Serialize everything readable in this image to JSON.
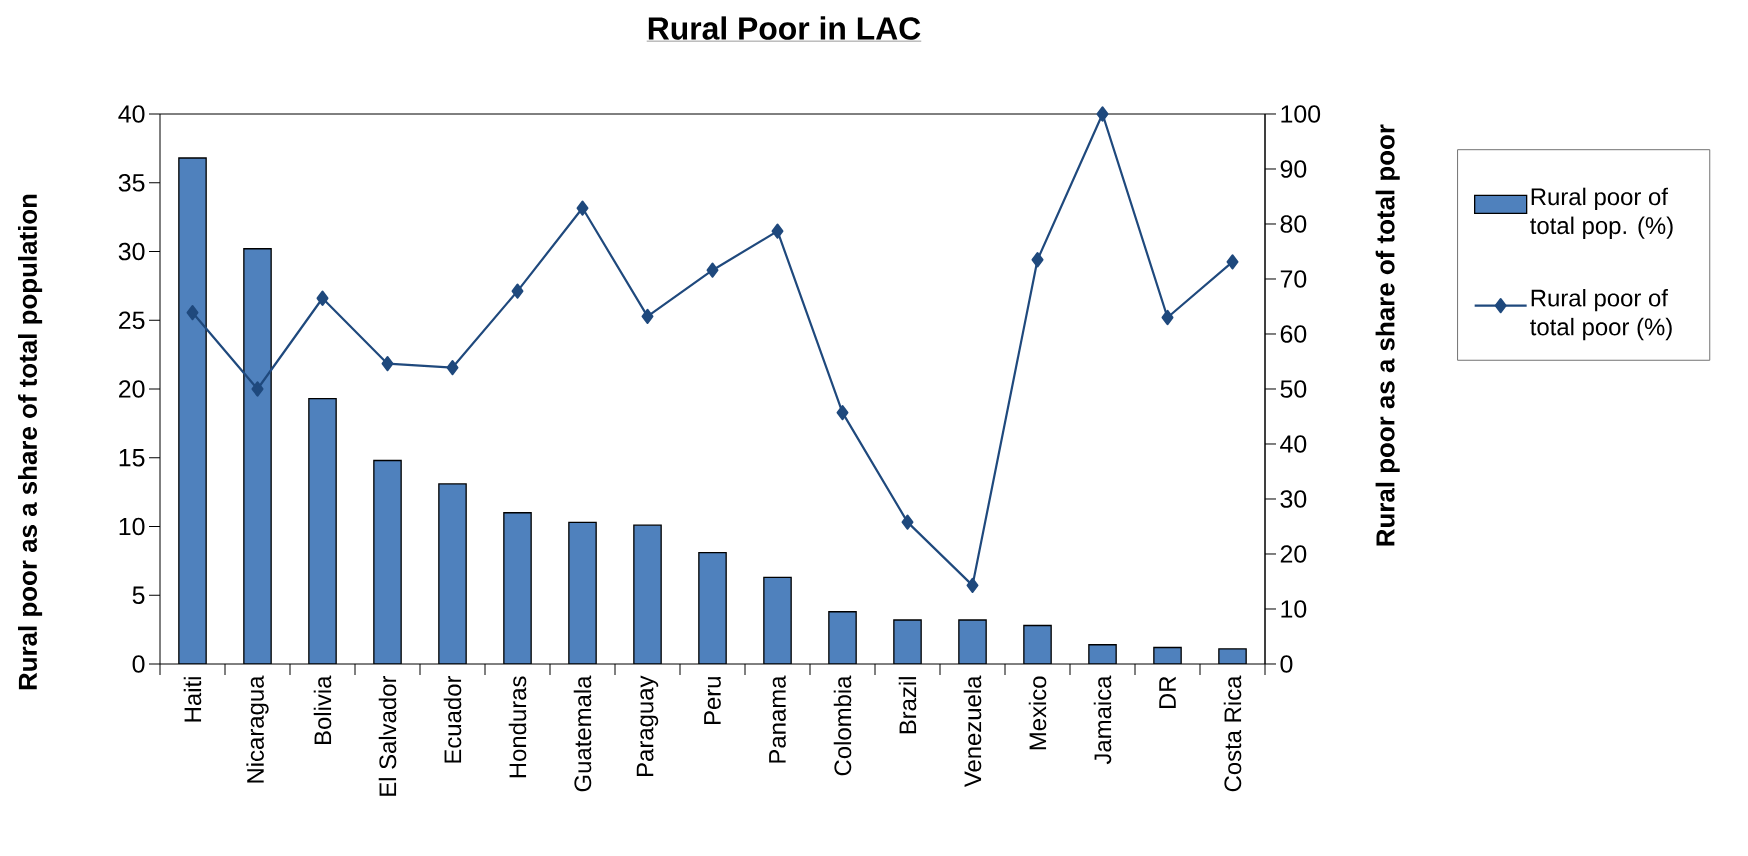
{
  "chart_data": {
    "type": "bar",
    "title": "Rural Poor in LAC",
    "ylabel": "Rural poor as a share of total population",
    "y2label": "Rural poor as a share of total poor",
    "categories": [
      "Haiti",
      "Nicaragua",
      "Bolivia",
      "El Salvador",
      "Ecuador",
      "Honduras",
      "Guatemala",
      "Paraguay",
      "Peru",
      "Panama",
      "Colombia",
      "Brazil",
      "Venezuela",
      "Mexico",
      "Jamaica",
      "DR",
      "Costa Rica"
    ],
    "series": [
      {
        "name": "Rural poor of total pop. (%)",
        "color": "#4f81bd",
        "values": [
          36.8,
          30.2,
          19.3,
          14.8,
          13.1,
          11.0,
          10.3,
          10.1,
          8.1,
          6.3,
          3.8,
          3.2,
          3.2,
          2.8,
          1.4,
          1.2,
          1.1
        ]
      },
      {
        "name": "Rural poor of total poor (%)",
        "type": "line",
        "axis": "y2",
        "color": "#1f497d",
        "marker": "diamond",
        "line_style": "solid",
        "values": [
          63.9,
          50.0,
          66.5,
          54.6,
          53.9,
          67.8,
          82.9,
          63.2,
          71.6,
          78.7,
          45.7,
          25.8,
          14.3,
          73.5,
          100,
          63.0,
          73.1
        ]
      }
    ],
    "ylim": [
      0,
      40
    ],
    "yticks": [
      0,
      5,
      10,
      15,
      20,
      25,
      30,
      35,
      40
    ],
    "y2lim": [
      0,
      100
    ],
    "y2ticks": [
      0,
      10,
      20,
      30,
      40,
      50,
      60,
      70,
      80,
      90,
      100
    ],
    "legend": "right"
  }
}
